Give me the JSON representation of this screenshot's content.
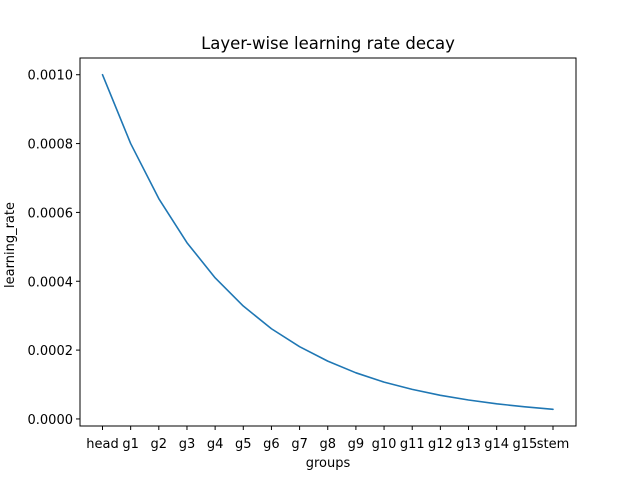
{
  "chart_data": {
    "type": "line",
    "title": "Layer-wise learning rate decay",
    "xlabel": "groups",
    "ylabel": "learning_rate",
    "categories": [
      "head",
      "g1",
      "g2",
      "g3",
      "g4",
      "g5",
      "g6",
      "g7",
      "g8",
      "g9",
      "g10",
      "g11",
      "g12",
      "g13",
      "g14",
      "g15",
      "stem"
    ],
    "series": [
      {
        "values": [
          0.001,
          0.0008,
          0.00064,
          0.000512,
          0.00041,
          0.000328,
          0.000262,
          0.00021,
          0.000168,
          0.000134,
          0.000107,
          8.59e-05,
          6.87e-05,
          5.5e-05,
          4.4e-05,
          3.52e-05,
          2.81e-05
        ]
      }
    ],
    "ylim": [
      -2.05e-05,
      0.0010486
    ],
    "yticks": [
      0.0,
      0.0002,
      0.0004,
      0.0006,
      0.0008,
      0.001
    ],
    "ytick_labels": [
      "0.0000",
      "0.0002",
      "0.0004",
      "0.0006",
      "0.0008",
      "0.0010"
    ],
    "grid": false,
    "colors": {
      "series": "#1f77b4"
    }
  }
}
